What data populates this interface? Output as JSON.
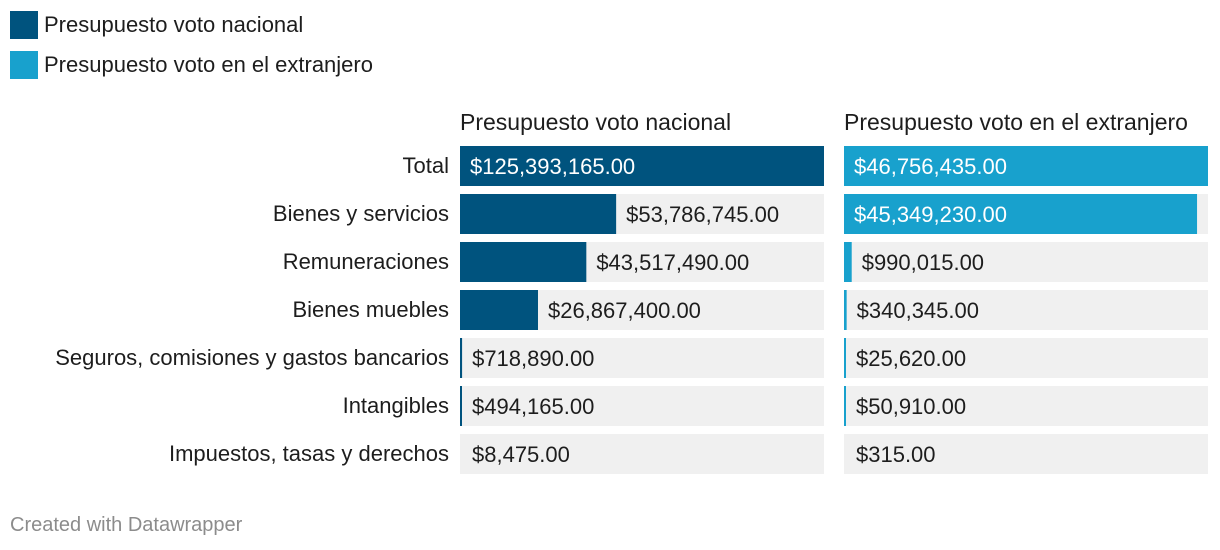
{
  "legend": [
    {
      "label": "Presupuesto voto nacional",
      "color": "#00537e"
    },
    {
      "label": "Presupuesto voto en el extranjero",
      "color": "#18a1cd"
    }
  ],
  "footer": "Created with Datawrapper",
  "chart_data": {
    "type": "bar",
    "orientation": "horizontal",
    "layout": "split-bars",
    "categories": [
      "Total",
      "Bienes y servicios",
      "Remuneraciones",
      "Bienes muebles",
      "Seguros, comisiones y gastos bancarios",
      "Intangibles",
      "Impuestos, tasas y derechos"
    ],
    "series": [
      {
        "name": "Presupuesto voto nacional",
        "color": "#00537e",
        "values": [
          125393165,
          53786745,
          43517490,
          26867400,
          718890,
          494165,
          8475
        ],
        "labels": [
          "$125,393,165.00",
          "$53,786,745.00",
          "$43,517,490.00",
          "$26,867,400.00",
          "$718,890.00",
          "$494,165.00",
          "$8,475.00"
        ]
      },
      {
        "name": "Presupuesto voto en el extranjero",
        "color": "#18a1cd",
        "values": [
          46756435,
          45349230,
          990015,
          340345,
          25620,
          50910,
          315
        ],
        "labels": [
          "$46,756,435.00",
          "$45,349,230.00",
          "$990,015.00",
          "$340,345.00",
          "$25,620.00",
          "$50,910.00",
          "$315.00"
        ]
      }
    ],
    "background_bar_color": "#f0f0f0",
    "grid": false
  }
}
